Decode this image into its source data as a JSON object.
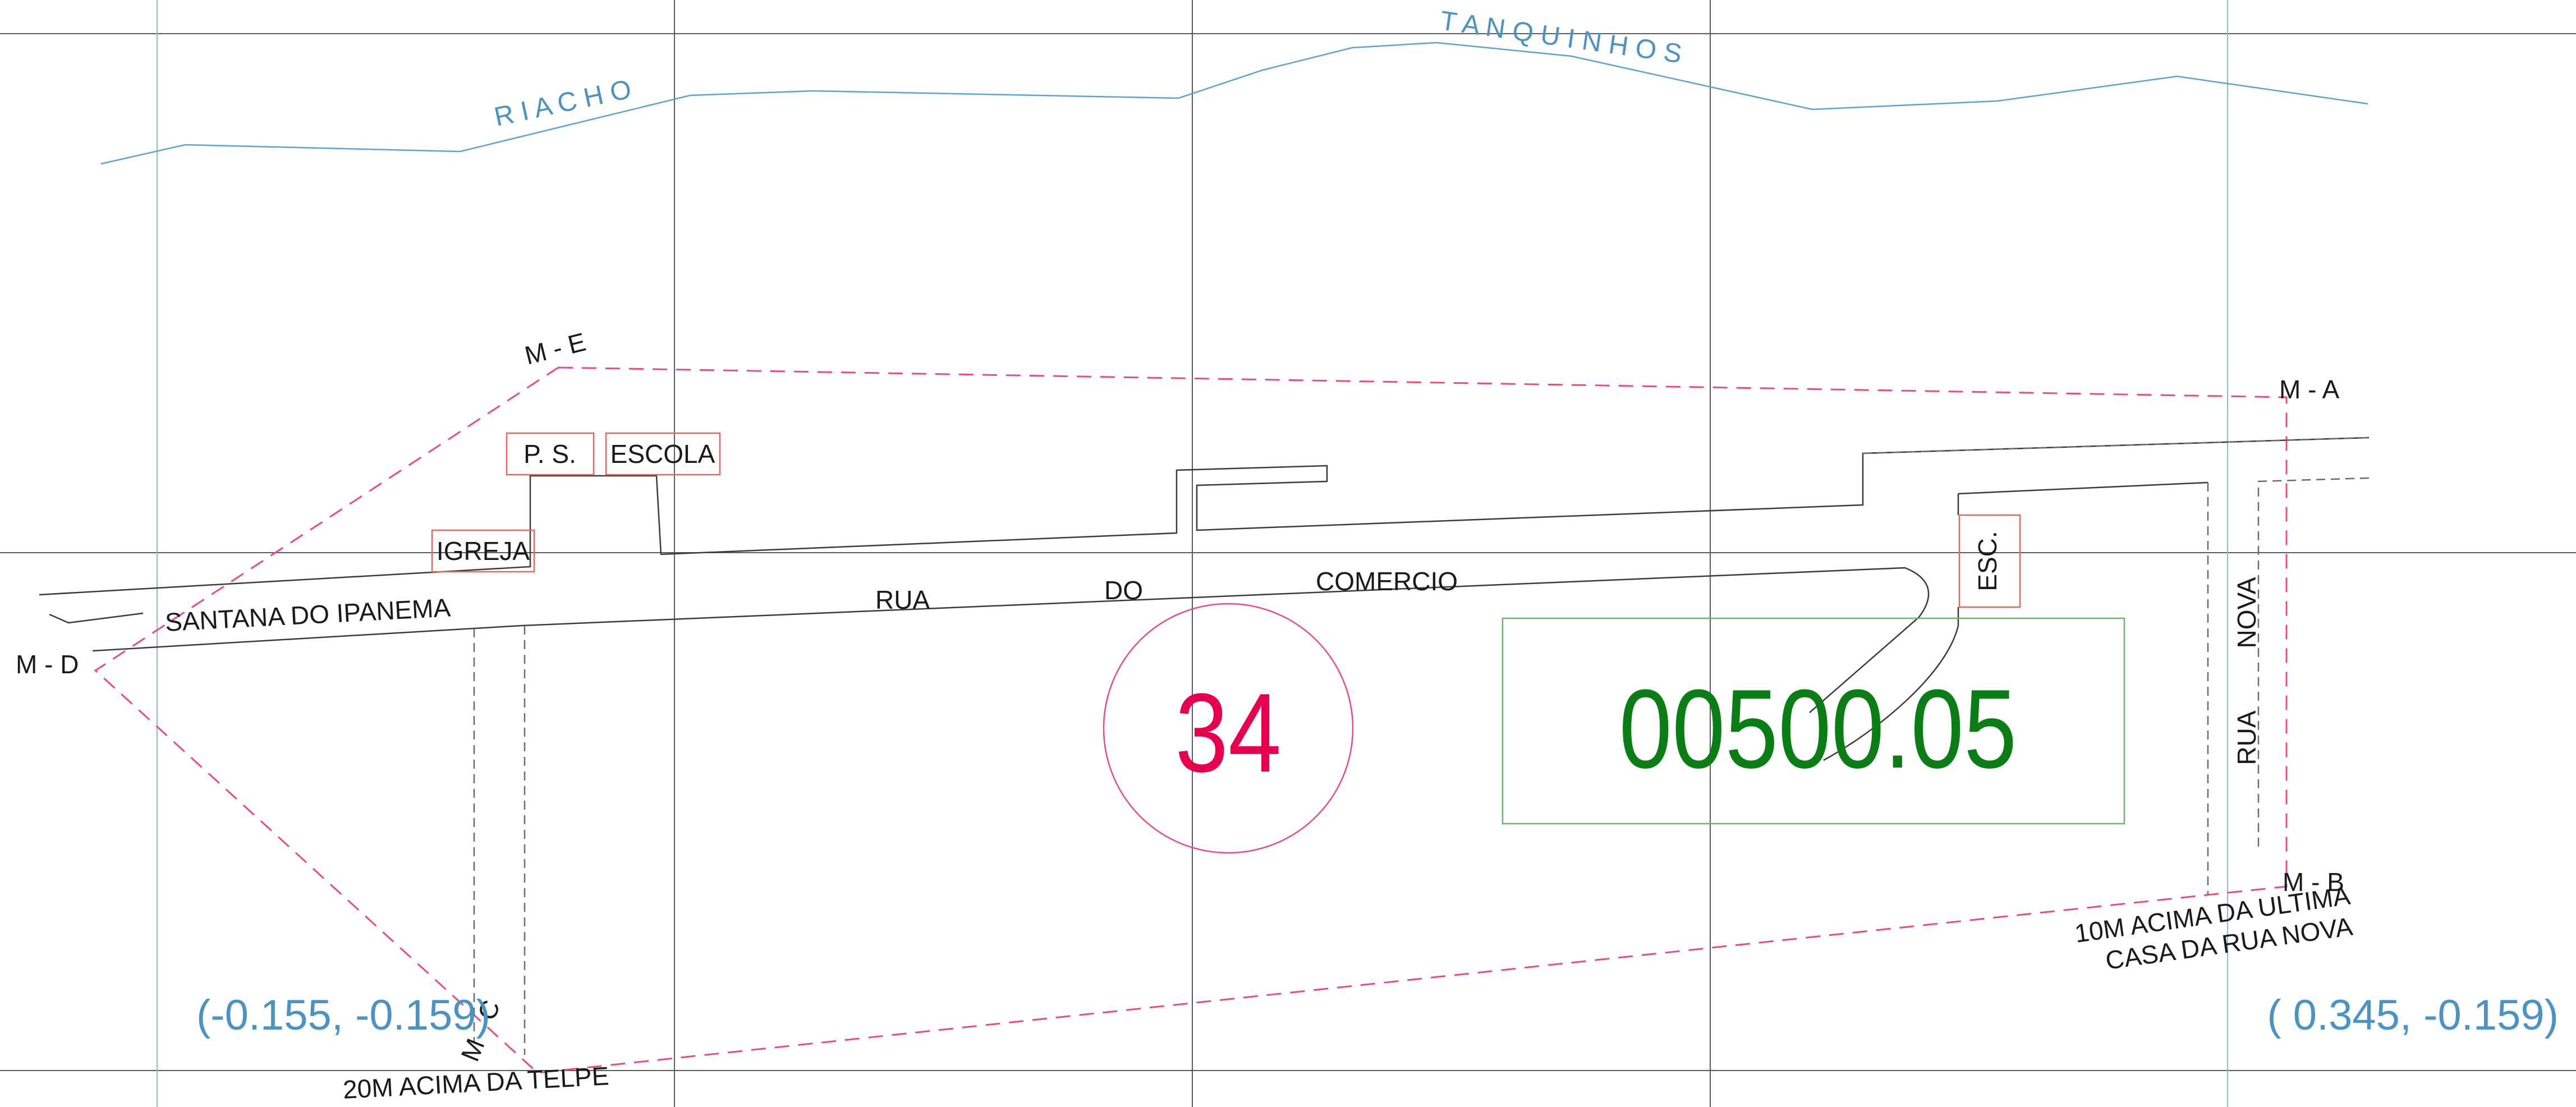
{
  "river": {
    "label_left": "R I A C H O",
    "label_right": "T A N Q U I N H O S"
  },
  "markers": {
    "ma": "M - A",
    "mb": "M - B",
    "mc": "M - C",
    "md": "M - D",
    "me": "M - E"
  },
  "buildings": {
    "ps": "P. S.",
    "escola": "ESCOLA",
    "igreja": "IGREJA",
    "esc": "ESC."
  },
  "streets": {
    "santana": "SANTANA DO IPANEMA",
    "rua_1": "RUA",
    "rua_2": "DO",
    "rua_3": "COMERCIO",
    "rua_nova_1": "RUA",
    "rua_nova_2": "NOVA"
  },
  "notes": {
    "mb_line1": "10M ACIMA DA ULTIMA",
    "mb_line2": "CASA DA RUA NOVA",
    "mc": "20M ACIMA DA TELPE"
  },
  "sheet": {
    "number": "34",
    "code": "00500.05",
    "coord_left": "(-0.155, -0.159)",
    "coord_right": "( 0.345, -0.159)"
  },
  "colors": {
    "boundary": "#ee4b78",
    "sheet_number": "#e6004e",
    "code": "#0a7d14",
    "river": "#4a93c4",
    "building": "#e8665a",
    "code_frame": "#6ab46a"
  }
}
